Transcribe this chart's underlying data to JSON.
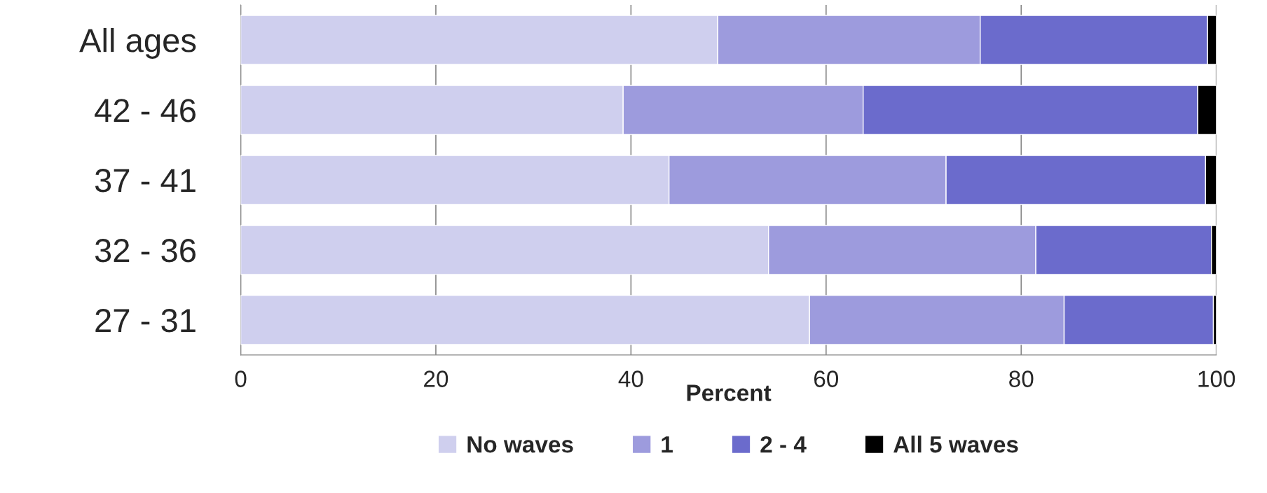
{
  "chart_data": {
    "type": "bar",
    "orientation": "horizontal",
    "stacked": true,
    "xlabel": "Percent",
    "categories": [
      "All ages",
      "42 - 46",
      "37 - 41",
      "32 - 36",
      "27 - 31"
    ],
    "series": [
      {
        "name": "No waves",
        "color": "#cfcfee",
        "values": [
          48.9,
          39.2,
          43.9,
          54.1,
          58.3
        ]
      },
      {
        "name": "1",
        "color": "#9d9bdd",
        "values": [
          26.9,
          24.6,
          28.4,
          27.4,
          26.1
        ]
      },
      {
        "name": "2 - 4",
        "color": "#6b6bcc",
        "values": [
          23.3,
          34.3,
          26.6,
          18.0,
          15.3
        ]
      },
      {
        "name": "All 5 waves",
        "color": "#000000",
        "values": [
          0.9,
          1.9,
          1.1,
          0.5,
          0.3
        ]
      }
    ],
    "xlim": [
      0,
      100
    ],
    "xticks": [
      0,
      20,
      40,
      60,
      80,
      100
    ],
    "grid": "x",
    "legend": "bottom"
  }
}
